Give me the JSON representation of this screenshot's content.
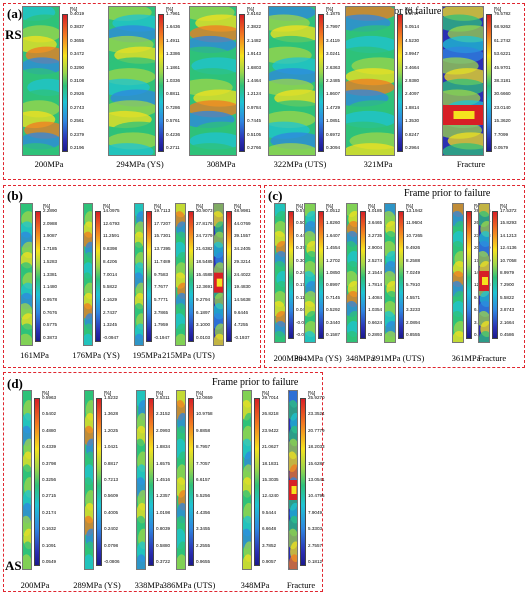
{
  "figure": {
    "panels": [
      {
        "label": "(a)",
        "side_label": "RS",
        "frame_note": "Frame prior to failure",
        "unit": "[%]",
        "frames": [
          {
            "caption": "200MPa",
            "ticks": [
              "0.4019",
              "0.3837",
              "0.3655",
              "0.3472",
              "0.3290",
              "0.3108",
              "0.2926",
              "0.2743",
              "0.2561",
              "0.2379",
              "0.2196"
            ]
          },
          {
            "caption": "294MPa (YS)",
            "ticks": [
              "1.7961",
              "1.6436",
              "1.4911",
              "1.3386",
              "1.1861",
              "1.0336",
              "0.8811",
              "0.7286",
              "0.5761",
              "0.4236",
              "0.2711"
            ]
          },
          {
            "caption": "308MPa",
            "ticks": [
              "2.6162",
              "2.3822",
              "2.1482",
              "1.9143",
              "1.6803",
              "1.4464",
              "1.2124",
              "0.9784",
              "0.7445",
              "0.5105",
              "0.2766"
            ]
          },
          {
            "caption": "322MPa (UTS)",
            "ticks": [
              "4.1875",
              "3.7997",
              "3.4119",
              "3.0241",
              "2.6363",
              "2.2485",
              "1.8607",
              "1.4729",
              "1.0851",
              "0.6972",
              "0.3094"
            ]
          },
          {
            "caption": "321MPa",
            "ticks": [
              "5.5797",
              "5.0514",
              "4.5230",
              "3.9947",
              "3.4664",
              "2.9380",
              "2.4097",
              "1.8814",
              "1.3530",
              "0.8247",
              "0.2964"
            ]
          },
          {
            "caption": "Fracture",
            "ticks": [
              "76.5782",
              "68.9262",
              "61.2742",
              "53.6221",
              "45.9701",
              "38.3181",
              "30.6660",
              "23.0140",
              "15.3620",
              "7.7099",
              "0.0579"
            ]
          }
        ]
      },
      {
        "label": "(b)",
        "unit": "[%]",
        "frames": [
          {
            "caption": "161MPa",
            "ticks": [
              "2.2890",
              "2.0988",
              "1.9087",
              "1.7185",
              "1.5283",
              "1.3381",
              "1.1480",
              "0.9578",
              "0.7676",
              "0.5775",
              "0.3873"
            ]
          },
          {
            "caption": "176MPa (YS)",
            "ticks": [
              "14.0975",
              "12.6793",
              "11.2591",
              "9.8398",
              "8.4206",
              "7.0014",
              "5.5822",
              "4.1629",
              "2.7437",
              "1.3245",
              "-0.0947"
            ]
          },
          {
            "caption": "195MPa",
            "ticks": [
              "19.7113",
              "17.7207",
              "15.7301",
              "13.7395",
              "11.7489",
              "9.7583",
              "7.7677",
              "5.7771",
              "3.7865",
              "1.7959",
              "-0.1947"
            ]
          },
          {
            "caption": "215MPa (UTS)",
            "ticks": [
              "30.9073",
              "27.8176",
              "24.7279",
              "21.6382",
              "18.5485",
              "15.4588",
              "12.3691",
              "9.2794",
              "6.1897",
              "3.1000",
              "0.0103"
            ]
          },
          {
            "caption": "",
            "ticks": [
              "48.9981",
              "44.0769",
              "39.1557",
              "34.2405",
              "29.3214",
              "24.4022",
              "19.4830",
              "14.5638",
              "9.6446",
              "4.7255",
              "-0.1937"
            ]
          }
        ]
      },
      {
        "label": "(c)",
        "frame_note": "Frame prior to failure",
        "unit": "[%]",
        "frames": [
          {
            "caption": "200MPa",
            "ticks": [
              "0.5720",
              "0.5063",
              "0.4407",
              "0.3750",
              "0.3094",
              "0.2437",
              "0.1780",
              "0.1124",
              "0.0467",
              "-0.0189",
              "-0.0846"
            ]
          },
          {
            "caption": "304MPa (YS)",
            "ticks": [
              "2.0512",
              "1.8260",
              "1.6407",
              "1.4554",
              "1.2702",
              "1.0850",
              "0.8997",
              "0.7145",
              "0.5292",
              "0.3440",
              "0.1587"
            ]
          },
          {
            "caption": "348MPa",
            "ticks": [
              "4.0185",
              "3.6465",
              "3.2735",
              "2.9004",
              "2.5274",
              "2.1544",
              "1.7814",
              "1.4084",
              "1.0354",
              "0.6624",
              "0.2893"
            ]
          },
          {
            "caption": "391MPa (UTS)",
            "ticks": [
              "13.1942",
              "11.9604",
              "10.7265",
              "9.4926",
              "8.2588",
              "7.0249",
              "5.7910",
              "4.5571",
              "3.3233",
              "2.0894",
              "0.8555"
            ]
          },
          {
            "caption": "361MPa",
            "ticks": [
              "28.6505",
              "26.0547",
              "23.2088",
              "20.4629",
              "17.6670",
              "14.8711",
              "12.0753",
              "9.2794",
              "6.4835",
              "3.6876",
              "0.8918"
            ]
          },
          {
            "caption": "Fracture",
            "ticks": [
              "17.5372",
              "15.8293",
              "14.1213",
              "12.4136",
              "10.7058",
              "8.9979",
              "7.2900",
              "5.5822",
              "3.8743",
              "2.1664",
              "0.4586"
            ]
          }
        ]
      },
      {
        "label": "(d)",
        "side_label": "AS",
        "frame_note": "Frame prior to failure",
        "unit": "[%]",
        "frames": [
          {
            "caption": "200MPa",
            "ticks": [
              "0.5963",
              "0.5402",
              "0.4880",
              "0.4339",
              "0.3798",
              "0.3256",
              "0.2715",
              "0.2174",
              "0.1632",
              "0.1091",
              "0.0549"
            ]
          },
          {
            "caption": "289MPa (YS)",
            "ticks": [
              "1.5232",
              "1.3628",
              "1.2025",
              "1.0421",
              "0.8817",
              "0.7213",
              "0.5609",
              "0.4005",
              "0.2402",
              "0.0798",
              "-0.0806"
            ]
          },
          {
            "caption": "338MPa",
            "ticks": [
              "2.5311",
              "2.3152",
              "2.0993",
              "1.8834",
              "1.6575",
              "1.4516",
              "1.2357",
              "1.0198",
              "0.8039",
              "0.5880",
              "0.3722"
            ]
          },
          {
            "caption": "386MPa (UTS)",
            "ticks": [
              "12.0659",
              "10.9758",
              "9.8858",
              "8.7957",
              "7.7057",
              "6.6157",
              "5.5256",
              "4.4356",
              "3.3455",
              "2.2555",
              "0.9655"
            ]
          },
          {
            "caption": "348MPa",
            "ticks": [
              "29.7014",
              "26.8218",
              "23.9422",
              "21.0627",
              "18.1831",
              "15.3035",
              "12.4240",
              "9.5444",
              "6.6648",
              "3.7852",
              "0.9057"
            ]
          },
          {
            "caption": "Fracture",
            "ticks": [
              "25.9270",
              "23.3524",
              "20.7779",
              "18.2033",
              "15.6287",
              "13.0541",
              "10.4795",
              "7.9049",
              "5.3303",
              "2.7557",
              "0.1812"
            ]
          }
        ]
      }
    ]
  }
}
